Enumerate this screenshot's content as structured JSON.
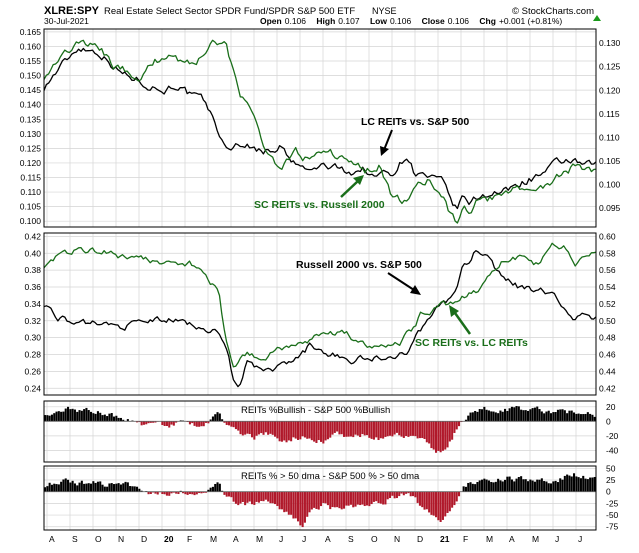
{
  "header": {
    "symbol": "XLRE:SPY",
    "description": "Real Estate Select Sector SPDR Fund/SPDR S&P 500 ETF",
    "exchange": "NYSE",
    "copyright": "© StockCharts.com",
    "date": "30-Jul-2021",
    "ohlc": {
      "open_label": "Open",
      "open": "0.106",
      "high_label": "High",
      "high": "0.107",
      "low_label": "Low",
      "low": "0.106",
      "close_label": "Close",
      "close": "0.106",
      "chg_label": "Chg",
      "chg": "+0.001 (+0.81%)"
    }
  },
  "x_axis": {
    "labels": [
      "A",
      "S",
      "O",
      "N",
      "D",
      "20",
      "F",
      "M",
      "A",
      "M",
      "J",
      "J",
      "A",
      "S",
      "O",
      "N",
      "D",
      "21",
      "F",
      "M",
      "A",
      "M",
      "J",
      "J"
    ],
    "bold": [
      "20",
      "21"
    ]
  },
  "colors": {
    "black_series": "#000000",
    "green_series": "#1a6e1a",
    "positive_bars": "#000000",
    "negative_bars": "#b0182a",
    "grid": "#d4d4d4",
    "arrow_green": "#1a6e1a"
  },
  "chart_data": [
    {
      "type": "line",
      "panel": "top",
      "series": [
        {
          "name": "LC REITs vs. S&P 500",
          "axis": "left",
          "color": "black",
          "keypoints": [
            [
              0,
              0.146
            ],
            [
              2,
              0.152
            ],
            [
              5,
              0.16
            ],
            [
              8,
              0.158
            ],
            [
              11,
              0.151
            ],
            [
              14,
              0.148
            ],
            [
              17,
              0.145
            ],
            [
              19,
              0.147
            ],
            [
              21,
              0.143
            ],
            [
              23,
              0.141
            ],
            [
              25,
              0.131
            ],
            [
              26,
              0.124
            ],
            [
              28,
              0.127
            ],
            [
              30,
              0.125
            ],
            [
              32,
              0.124
            ],
            [
              34,
              0.126
            ],
            [
              35,
              0.121
            ],
            [
              37,
              0.118
            ],
            [
              38,
              0.117
            ],
            [
              40,
              0.119
            ],
            [
              42,
              0.118
            ],
            [
              44,
              0.117
            ],
            [
              46,
              0.118
            ],
            [
              47,
              0.115
            ],
            [
              48,
              0.116
            ],
            [
              50,
              0.117
            ],
            [
              52,
              0.123
            ],
            [
              53,
              0.117
            ],
            [
              54,
              0.116
            ],
            [
              56,
              0.114
            ],
            [
              57,
              0.113
            ],
            [
              58,
              0.108
            ],
            [
              59,
              0.104
            ],
            [
              60,
              0.108
            ],
            [
              61,
              0.106
            ],
            [
              62,
              0.108
            ],
            [
              64,
              0.11
            ],
            [
              66,
              0.11
            ],
            [
              68,
              0.113
            ],
            [
              70,
              0.115
            ],
            [
              72,
              0.117
            ],
            [
              73,
              0.119
            ],
            [
              75,
              0.121
            ],
            [
              76,
              0.12
            ],
            [
              77,
              0.119
            ],
            [
              79,
              0.119
            ]
          ]
        },
        {
          "name": "SC REITs vs. Russell 2000",
          "axis": "right",
          "color": "green",
          "keypoints": [
            [
              0,
              0.123
            ],
            [
              2,
              0.127
            ],
            [
              5,
              0.13
            ],
            [
              8,
              0.129
            ],
            [
              10,
              0.125
            ],
            [
              12,
              0.124
            ],
            [
              14,
              0.123
            ],
            [
              16,
              0.126
            ],
            [
              18,
              0.128
            ],
            [
              20,
              0.126
            ],
            [
              22,
              0.126
            ],
            [
              24,
              0.131
            ],
            [
              26,
              0.13
            ],
            [
              28,
              0.119
            ],
            [
              30,
              0.114
            ],
            [
              32,
              0.107
            ],
            [
              34,
              0.103
            ],
            [
              36,
              0.107
            ],
            [
              38,
              0.105
            ],
            [
              40,
              0.108
            ],
            [
              42,
              0.106
            ],
            [
              44,
              0.104
            ],
            [
              46,
              0.103
            ],
            [
              48,
              0.104
            ],
            [
              50,
              0.097
            ],
            [
              52,
              0.096
            ],
            [
              53,
              0.1
            ],
            [
              55,
              0.101
            ],
            [
              57,
              0.098
            ],
            [
              58,
              0.094
            ],
            [
              59,
              0.092
            ],
            [
              60,
              0.095
            ],
            [
              61,
              0.093
            ],
            [
              62,
              0.096
            ],
            [
              64,
              0.097
            ],
            [
              66,
              0.098
            ],
            [
              68,
              0.099
            ],
            [
              70,
              0.099
            ],
            [
              72,
              0.1
            ],
            [
              74,
              0.102
            ],
            [
              76,
              0.104
            ],
            [
              77,
              0.103
            ],
            [
              79,
              0.103
            ]
          ]
        }
      ],
      "left_ticks": [
        "0.165",
        "0.160",
        "0.155",
        "0.150",
        "0.145",
        "0.140",
        "0.135",
        "0.130",
        "0.125",
        "0.120",
        "0.115",
        "0.110",
        "0.105",
        "0.100"
      ],
      "left_ylim": [
        0.098,
        0.166
      ],
      "right_ticks": [
        "0.130",
        "0.125",
        "0.120",
        "0.115",
        "0.110",
        "0.105",
        "0.100",
        "0.095"
      ],
      "right_ylim": [
        0.091,
        0.133
      ],
      "annotations": [
        "LC REITs vs. S&P 500",
        "SC REITs vs. Russell 2000"
      ],
      "grid": true
    },
    {
      "type": "line",
      "panel": "middle",
      "series": [
        {
          "name": "Russell 2000 vs. S&P 500",
          "axis": "left",
          "color": "black",
          "keypoints": [
            [
              0,
              0.34
            ],
            [
              2,
              0.325
            ],
            [
              5,
              0.315
            ],
            [
              8,
              0.318
            ],
            [
              11,
              0.313
            ],
            [
              14,
              0.318
            ],
            [
              17,
              0.322
            ],
            [
              19,
              0.32
            ],
            [
              21,
              0.316
            ],
            [
              23,
              0.312
            ],
            [
              25,
              0.305
            ],
            [
              26,
              0.29
            ],
            [
              27,
              0.255
            ],
            [
              28,
              0.245
            ],
            [
              29,
              0.27
            ],
            [
              31,
              0.26
            ],
            [
              33,
              0.262
            ],
            [
              35,
              0.27
            ],
            [
              37,
              0.28
            ],
            [
              38,
              0.29
            ],
            [
              40,
              0.283
            ],
            [
              42,
              0.28
            ],
            [
              44,
              0.272
            ],
            [
              46,
              0.276
            ],
            [
              48,
              0.275
            ],
            [
              50,
              0.28
            ],
            [
              52,
              0.282
            ],
            [
              53,
              0.295
            ],
            [
              54,
              0.31
            ],
            [
              56,
              0.335
            ],
            [
              58,
              0.345
            ],
            [
              59,
              0.36
            ],
            [
              60,
              0.385
            ],
            [
              61,
              0.39
            ],
            [
              62,
              0.405
            ],
            [
              63,
              0.4
            ],
            [
              64,
              0.39
            ],
            [
              65,
              0.375
            ],
            [
              66,
              0.37
            ],
            [
              68,
              0.36
            ],
            [
              70,
              0.355
            ],
            [
              71,
              0.36
            ],
            [
              72,
              0.35
            ],
            [
              73,
              0.355
            ],
            [
              74,
              0.34
            ],
            [
              75,
              0.33
            ],
            [
              76,
              0.32
            ],
            [
              77,
              0.325
            ],
            [
              79,
              0.323
            ]
          ]
        },
        {
          "name": "SC REITs vs. LC REITs",
          "axis": "right",
          "color": "green",
          "keypoints": [
            [
              0,
              0.566
            ],
            [
              2,
              0.577
            ],
            [
              5,
              0.585
            ],
            [
              8,
              0.583
            ],
            [
              11,
              0.577
            ],
            [
              14,
              0.573
            ],
            [
              17,
              0.57
            ],
            [
              19,
              0.568
            ],
            [
              21,
              0.567
            ],
            [
              23,
              0.555
            ],
            [
              25,
              0.535
            ],
            [
              26,
              0.48
            ],
            [
              27,
              0.445
            ],
            [
              28,
              0.455
            ],
            [
              29,
              0.46
            ],
            [
              31,
              0.455
            ],
            [
              33,
              0.462
            ],
            [
              35,
              0.47
            ],
            [
              37,
              0.475
            ],
            [
              39,
              0.48
            ],
            [
              41,
              0.485
            ],
            [
              43,
              0.487
            ],
            [
              45,
              0.475
            ],
            [
              47,
              0.468
            ],
            [
              49,
              0.466
            ],
            [
              51,
              0.475
            ],
            [
              52,
              0.485
            ],
            [
              53,
              0.49
            ],
            [
              54,
              0.51
            ],
            [
              56,
              0.515
            ],
            [
              58,
              0.52
            ],
            [
              59,
              0.525
            ],
            [
              60,
              0.53
            ],
            [
              62,
              0.535
            ],
            [
              63,
              0.548
            ],
            [
              64,
              0.558
            ],
            [
              65,
              0.567
            ],
            [
              67,
              0.578
            ],
            [
              69,
              0.575
            ],
            [
              71,
              0.565
            ],
            [
              72,
              0.58
            ],
            [
              73,
              0.59
            ],
            [
              75,
              0.585
            ],
            [
              76,
              0.57
            ],
            [
              77,
              0.575
            ],
            [
              79,
              0.58
            ]
          ]
        }
      ],
      "left_ticks": [
        "0.42",
        "0.40",
        "0.38",
        "0.36",
        "0.34",
        "0.32",
        "0.30",
        "0.28",
        "0.26",
        "0.24"
      ],
      "left_ylim": [
        0.232,
        0.424
      ],
      "right_ticks": [
        "0.60",
        "0.58",
        "0.56",
        "0.54",
        "0.52",
        "0.50",
        "0.48",
        "0.46",
        "0.44",
        "0.42"
      ],
      "right_ylim": [
        0.412,
        0.604
      ],
      "annotations": [
        "Russell 2000 vs. S&P 500",
        "SC REITs vs. LC REITs"
      ],
      "grid": true
    },
    {
      "type": "bar",
      "panel": "bullish",
      "title": "REITs %Bullish - S&P 500 %Bullish",
      "keypoints": [
        [
          0,
          12
        ],
        [
          4,
          16
        ],
        [
          8,
          12
        ],
        [
          10,
          8
        ],
        [
          12,
          0
        ],
        [
          14,
          -4
        ],
        [
          16,
          -6
        ],
        [
          18,
          -4
        ],
        [
          20,
          -2
        ],
        [
          22,
          -4
        ],
        [
          24,
          3
        ],
        [
          25,
          10
        ],
        [
          26,
          -6
        ],
        [
          28,
          -18
        ],
        [
          30,
          -22
        ],
        [
          32,
          -18
        ],
        [
          34,
          -30
        ],
        [
          36,
          -22
        ],
        [
          38,
          -20
        ],
        [
          40,
          -28
        ],
        [
          42,
          -18
        ],
        [
          44,
          -26
        ],
        [
          46,
          -18
        ],
        [
          48,
          -24
        ],
        [
          50,
          -22
        ],
        [
          52,
          -18
        ],
        [
          54,
          -26
        ],
        [
          56,
          -40
        ],
        [
          57,
          -45
        ],
        [
          58,
          -35
        ],
        [
          59,
          -15
        ],
        [
          60,
          -2
        ],
        [
          61,
          10
        ],
        [
          63,
          16
        ],
        [
          66,
          18
        ],
        [
          69,
          17
        ],
        [
          72,
          14
        ],
        [
          75,
          12
        ],
        [
          77,
          15
        ],
        [
          79,
          10
        ]
      ],
      "ticks": [
        "20",
        "0",
        "-20",
        "-40"
      ],
      "ylim": [
        -56,
        28
      ]
    },
    {
      "type": "bar",
      "panel": "dma",
      "title": "REITs % > 50 dma - S&P 500 % > 50 dma",
      "keypoints": [
        [
          0,
          15
        ],
        [
          4,
          22
        ],
        [
          8,
          18
        ],
        [
          10,
          14
        ],
        [
          12,
          12
        ],
        [
          14,
          2
        ],
        [
          16,
          -5
        ],
        [
          18,
          0
        ],
        [
          20,
          2
        ],
        [
          22,
          -8
        ],
        [
          24,
          10
        ],
        [
          25,
          18
        ],
        [
          26,
          -12
        ],
        [
          28,
          -30
        ],
        [
          30,
          -25
        ],
        [
          32,
          -25
        ],
        [
          34,
          -40
        ],
        [
          36,
          -55
        ],
        [
          37,
          -70
        ],
        [
          38,
          -45
        ],
        [
          40,
          -30
        ],
        [
          42,
          -40
        ],
        [
          44,
          -28
        ],
        [
          46,
          -35
        ],
        [
          48,
          -22
        ],
        [
          50,
          -12
        ],
        [
          52,
          -5
        ],
        [
          54,
          -28
        ],
        [
          56,
          -50
        ],
        [
          57,
          -58
        ],
        [
          58,
          -45
        ],
        [
          59,
          -20
        ],
        [
          60,
          5
        ],
        [
          61,
          20
        ],
        [
          63,
          28
        ],
        [
          66,
          30
        ],
        [
          69,
          28
        ],
        [
          72,
          25
        ],
        [
          74,
          28
        ],
        [
          76,
          38
        ],
        [
          77,
          30
        ],
        [
          79,
          25
        ]
      ],
      "ticks": [
        "50",
        "25",
        "0",
        "-25",
        "-50",
        "-75"
      ],
      "ylim": [
        -82,
        55
      ]
    }
  ]
}
